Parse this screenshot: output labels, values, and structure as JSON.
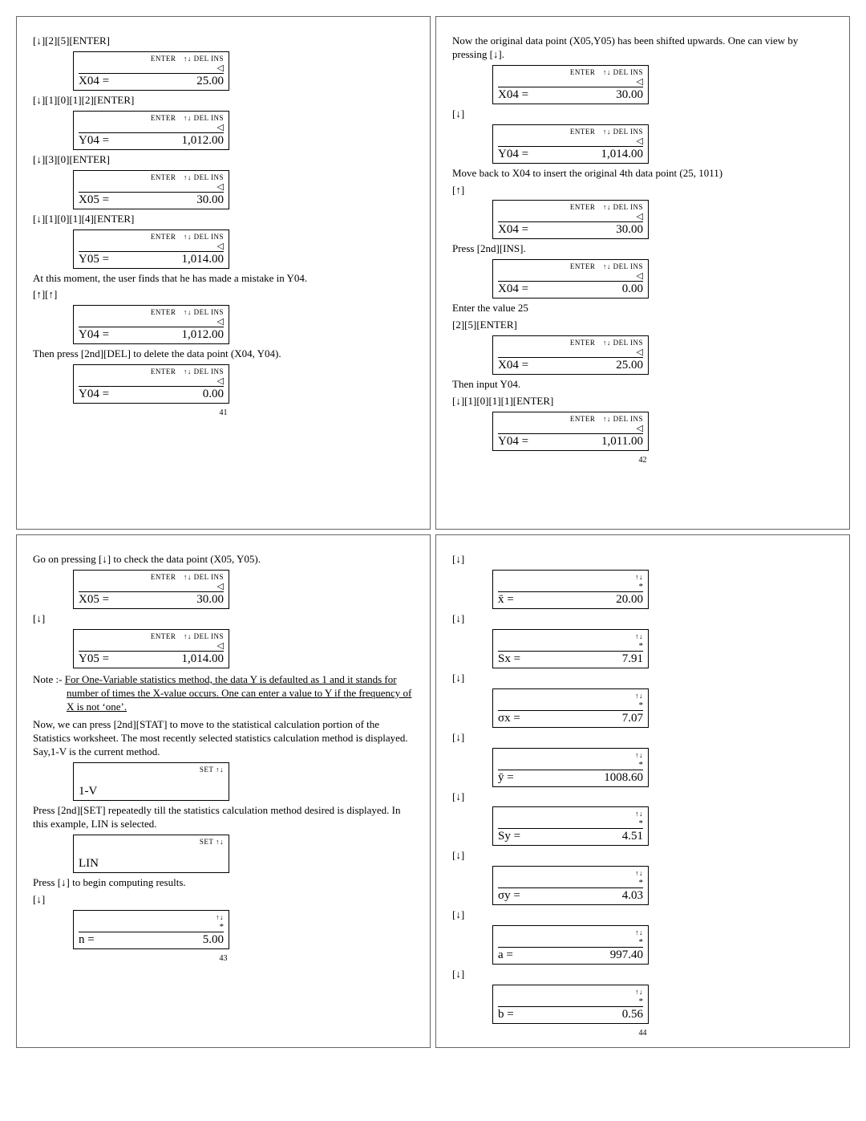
{
  "lcd_header_full": "ENTER ↑↓ DEL INS",
  "lcd_header_set": "SET ↑↓",
  "lcd_header_ud": "↑↓",
  "cursor": "◁",
  "asterisk": "*",
  "pages": {
    "p41": {
      "num": "41",
      "items": [
        {
          "t": "instr",
          "text": "[↓][2][5][ENTER]"
        },
        {
          "t": "lcd",
          "top": "full",
          "mid": "cursor",
          "label": "X04",
          "val": "25.00"
        },
        {
          "t": "instr",
          "text": "[↓][1][0][1][2][ENTER]"
        },
        {
          "t": "lcd",
          "top": "full",
          "mid": "cursor",
          "label": "Y04",
          "val": "1,012.00"
        },
        {
          "t": "instr",
          "text": "[↓][3][0][ENTER]"
        },
        {
          "t": "lcd",
          "top": "full",
          "mid": "cursor",
          "label": "X05",
          "val": "30.00"
        },
        {
          "t": "instr",
          "text": "[↓][1][0][1][4][ENTER]"
        },
        {
          "t": "lcd",
          "top": "full",
          "mid": "cursor",
          "label": "Y05",
          "val": "1,014.00"
        },
        {
          "t": "instr",
          "text": "At this moment, the user finds that he has made a mistake in Y04."
        },
        {
          "t": "instr",
          "text": "[↑][↑]"
        },
        {
          "t": "lcd",
          "top": "full",
          "mid": "cursor",
          "label": "Y04",
          "val": "1,012.00"
        },
        {
          "t": "instr",
          "text": "Then press [2nd][DEL] to delete the data point (X04, Y04)."
        },
        {
          "t": "lcd",
          "top": "full",
          "mid": "cursor",
          "label": "Y04",
          "val": "0.00"
        }
      ]
    },
    "p42": {
      "num": "42",
      "items": [
        {
          "t": "instr",
          "text": "Now the original data point (X05,Y05) has been shifted upwards. One can view by pressing [↓]."
        },
        {
          "t": "lcd",
          "top": "full",
          "mid": "cursor",
          "label": "X04",
          "val": "30.00"
        },
        {
          "t": "instr",
          "text": "[↓]"
        },
        {
          "t": "lcd",
          "top": "full",
          "mid": "cursor",
          "label": "Y04",
          "val": "1,014.00"
        },
        {
          "t": "instr",
          "text": "Move back to X04 to insert the original 4th data point (25, 1011)"
        },
        {
          "t": "instr",
          "text": "[↑]"
        },
        {
          "t": "lcd",
          "top": "full",
          "mid": "cursor",
          "label": "X04",
          "val": "30.00"
        },
        {
          "t": "instr",
          "text": "Press [2nd][INS]."
        },
        {
          "t": "lcd",
          "top": "full",
          "mid": "cursor",
          "label": "X04",
          "val": "0.00"
        },
        {
          "t": "instr",
          "text": "Enter the value 25"
        },
        {
          "t": "instr",
          "text": "[2][5][ENTER]"
        },
        {
          "t": "lcd",
          "top": "full",
          "mid": "cursor",
          "label": "X04",
          "val": "25.00"
        },
        {
          "t": "instr",
          "text": "Then input Y04."
        },
        {
          "t": "instr",
          "text": "[↓][1][0][1][1][ENTER]"
        },
        {
          "t": "lcd",
          "top": "full",
          "mid": "cursor",
          "label": "Y04",
          "val": "1,011.00"
        }
      ]
    },
    "p43": {
      "num": "43",
      "items": [
        {
          "t": "instr",
          "text": "Go on pressing [↓] to check the data point (X05, Y05)."
        },
        {
          "t": "lcd",
          "top": "full",
          "mid": "cursor",
          "label": "X05",
          "val": "30.00"
        },
        {
          "t": "instr",
          "text": "[↓]"
        },
        {
          "t": "lcd",
          "top": "full",
          "mid": "cursor",
          "label": "Y05",
          "val": "1,014.00"
        },
        {
          "t": "note",
          "prefix": "Note :- ",
          "text": "For One-Variable statistics method, the data Y is defaulted as 1 and it stands for number of times the X-value occurs. One can enter a value to Y if the frequency of X is not ‘one’."
        },
        {
          "t": "instr",
          "text": "Now, we can press [2nd][STAT] to move to the statistical calculation portion of the Statistics worksheet. The most recently selected statistics calculation method is displayed. Say,1-V is the current method."
        },
        {
          "t": "lcd",
          "top": "set",
          "mid": "",
          "label": "1-V",
          "val": ""
        },
        {
          "t": "instr",
          "text": "Press [2nd][SET] repeatedly till the statistics calculation method desired is displayed. In this example, LIN is selected."
        },
        {
          "t": "lcd",
          "top": "set",
          "mid": "",
          "label": "LIN",
          "val": ""
        },
        {
          "t": "instr",
          "text": "Press [↓] to begin computing results."
        },
        {
          "t": "instr",
          "text": "[↓]"
        },
        {
          "t": "lcd",
          "top": "ud",
          "mid": "ast",
          "label": "n",
          "val": "5.00"
        }
      ]
    },
    "p44": {
      "num": "44",
      "items": [
        {
          "t": "instr",
          "text": "[↓]"
        },
        {
          "t": "lcd",
          "top": "ud",
          "mid": "ast",
          "label": "x̄",
          "val": "20.00"
        },
        {
          "t": "instr",
          "text": "[↓]"
        },
        {
          "t": "lcd",
          "top": "ud",
          "mid": "ast",
          "label": "Sx",
          "val": "7.91"
        },
        {
          "t": "instr",
          "text": "[↓]"
        },
        {
          "t": "lcd",
          "top": "ud",
          "mid": "ast",
          "label": "σx",
          "val": "7.07"
        },
        {
          "t": "instr",
          "text": "[↓]"
        },
        {
          "t": "lcd",
          "top": "ud",
          "mid": "ast",
          "label": "ȳ",
          "val": "1008.60"
        },
        {
          "t": "instr",
          "text": "[↓]"
        },
        {
          "t": "lcd",
          "top": "ud",
          "mid": "ast",
          "label": "Sy",
          "val": "4.51"
        },
        {
          "t": "instr",
          "text": "[↓]"
        },
        {
          "t": "lcd",
          "top": "ud",
          "mid": "ast",
          "label": "σy",
          "val": "4.03"
        },
        {
          "t": "instr",
          "text": "[↓]"
        },
        {
          "t": "lcd",
          "top": "ud",
          "mid": "ast",
          "label": "a",
          "val": "997.40"
        },
        {
          "t": "instr",
          "text": "[↓]"
        },
        {
          "t": "lcd",
          "top": "ud",
          "mid": "ast",
          "label": "b",
          "val": "0.56"
        }
      ]
    }
  }
}
